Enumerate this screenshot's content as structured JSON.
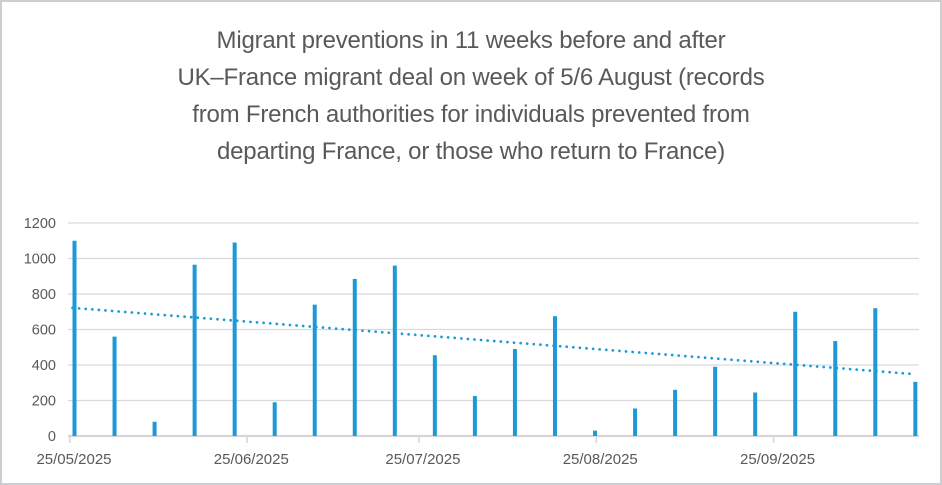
{
  "window": {
    "background": "#ffffff",
    "border_color": "#cdced0"
  },
  "title": {
    "lines": [
      "Migrant preventions in 11 weeks before and after",
      "UK–France migrant deal on week of 5/6 August (records",
      "from French authorities for individuals prevented from",
      "departing France, or those who return to France)"
    ],
    "color": "#595959"
  },
  "chart_data": {
    "type": "bar",
    "title": "Migrant preventions in 11 weeks before and after UK–France migrant deal on week of 5/6 August (records from French authorities for individuals prevented from departing France, or those who return to France)",
    "xlabel": "",
    "ylabel": "",
    "categories": [
      "25/05/2025",
      "01/06/2025",
      "08/06/2025",
      "15/06/2025",
      "22/06/2025",
      "29/06/2025",
      "06/07/2025",
      "13/07/2025",
      "20/07/2025",
      "27/07/2025",
      "03/08/2025",
      "10/08/2025",
      "17/08/2025",
      "24/08/2025",
      "31/08/2025",
      "07/09/2025",
      "14/09/2025",
      "21/09/2025",
      "28/09/2025",
      "05/10/2025",
      "12/10/2025",
      "19/10/2025"
    ],
    "values": [
      1100,
      560,
      80,
      965,
      1090,
      190,
      740,
      885,
      960,
      455,
      225,
      490,
      675,
      30,
      155,
      260,
      390,
      245,
      700,
      535,
      720,
      305
    ],
    "trendline": {
      "type": "linear",
      "style": "dotted",
      "start_value": 722,
      "end_value": 348
    },
    "ylim": [
      0,
      1200
    ],
    "y_ticks": [
      0,
      200,
      400,
      600,
      800,
      1000,
      1200
    ],
    "x_tick_labels": [
      "25/05/2025",
      "25/06/2025",
      "25/07/2025",
      "25/08/2025",
      "25/09/2025"
    ],
    "grid": true,
    "legend": "none",
    "bar_color": "#1b9ad6",
    "gridline_color": "#d9d9d9",
    "axis_line_color": "#d6d6d6",
    "axis_label_color": "#595959"
  }
}
